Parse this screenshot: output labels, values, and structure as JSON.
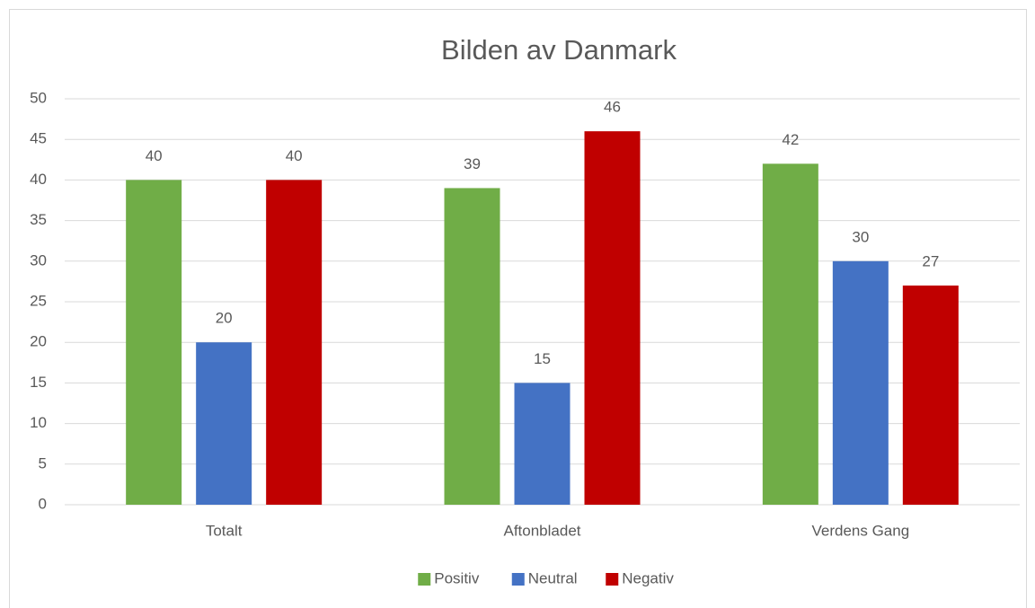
{
  "chart_data": {
    "type": "bar",
    "title": "Bilden av Danmark",
    "categories": [
      "Totalt",
      "Aftonbladet",
      "Verdens Gang"
    ],
    "series": [
      {
        "name": "Positiv",
        "color": "#70ad47",
        "values": [
          40,
          39,
          42
        ]
      },
      {
        "name": "Neutral",
        "color": "#4472c4",
        "values": [
          20,
          15,
          30
        ]
      },
      {
        "name": "Negativ",
        "color": "#c00000",
        "values": [
          40,
          46,
          27
        ]
      }
    ],
    "ylim": [
      0,
      50
    ],
    "yticks": [
      0,
      5,
      10,
      15,
      20,
      25,
      30,
      35,
      40,
      45,
      50
    ],
    "grid": true,
    "legend": "bottom"
  }
}
